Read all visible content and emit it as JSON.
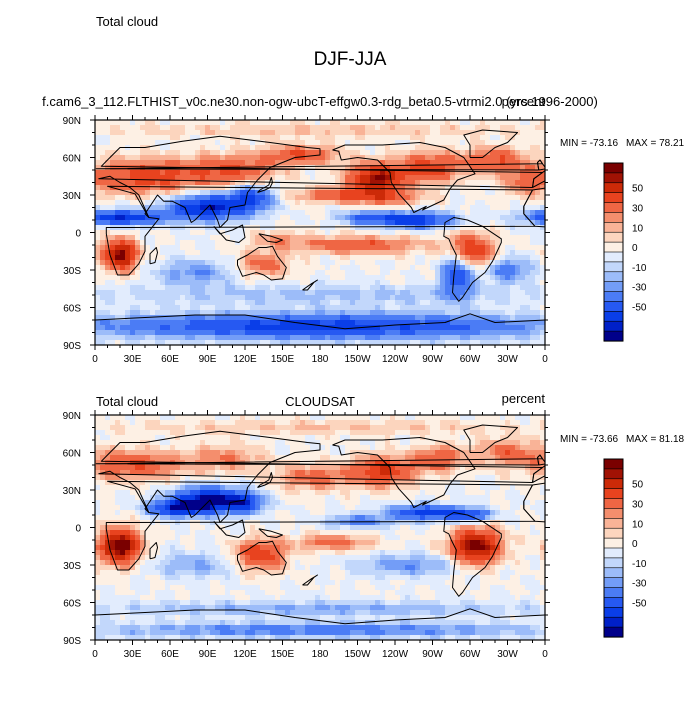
{
  "figure_title": "DJF-JJA",
  "chart_data": [
    {
      "type": "heatmap",
      "variable": "Total cloud",
      "title_left": "Total cloud",
      "title_center": "f.cam6_3_112.FLTHIST_v0c.ne30.non-ogw-ubcT-effgw0.3-rdg_beta0.5-vtrmi2.0 (yrs 1996-2000)",
      "title_right": "percent",
      "min_label": "MIN = -73.16",
      "max_label": "MAX =  78.21",
      "x_ticks": [
        "0",
        "30E",
        "60E",
        "90E",
        "120E",
        "150E",
        "180",
        "150W",
        "120W",
        "90W",
        "60W",
        "30W",
        "0"
      ],
      "y_ticks": [
        "90N",
        "60N",
        "30N",
        "0",
        "30S",
        "60S",
        "90S"
      ],
      "xlim": [
        0,
        360
      ],
      "ylim": [
        -90,
        90
      ],
      "blobs": [
        {
          "lon": 40,
          "lat": 45,
          "rx": 45,
          "ry": 14,
          "v": 35
        },
        {
          "lon": 110,
          "lat": 50,
          "rx": 35,
          "ry": 12,
          "v": 30
        },
        {
          "lon": 225,
          "lat": 43,
          "rx": 22,
          "ry": 12,
          "v": 55
        },
        {
          "lon": 268,
          "lat": 52,
          "rx": 25,
          "ry": 12,
          "v": 35
        },
        {
          "lon": 320,
          "lat": 58,
          "rx": 25,
          "ry": 10,
          "v": 30
        },
        {
          "lon": 165,
          "lat": 62,
          "rx": 30,
          "ry": 8,
          "v": 30
        },
        {
          "lon": 345,
          "lat": 40,
          "rx": 18,
          "ry": 10,
          "v": 20
        },
        {
          "lon": 190,
          "lat": 30,
          "rx": 30,
          "ry": 6,
          "v": 28
        },
        {
          "lon": 235,
          "lat": 28,
          "rx": 30,
          "ry": 6,
          "v": 22
        },
        {
          "lon": 20,
          "lat": -18,
          "rx": 14,
          "ry": 12,
          "v": 60
        },
        {
          "lon": 300,
          "lat": -15,
          "rx": 18,
          "ry": 14,
          "v": 45
        },
        {
          "lon": 135,
          "lat": -25,
          "rx": 20,
          "ry": 10,
          "v": 25
        },
        {
          "lon": 210,
          "lat": -10,
          "rx": 50,
          "ry": 7,
          "v": 30
        },
        {
          "lon": 145,
          "lat": -5,
          "rx": 20,
          "ry": 6,
          "v": 15
        },
        {
          "lon": 90,
          "lat": 20,
          "rx": 32,
          "ry": 10,
          "v": -55
        },
        {
          "lon": 20,
          "lat": 12,
          "rx": 35,
          "ry": 6,
          "v": -50
        },
        {
          "lon": 125,
          "lat": 28,
          "rx": 18,
          "ry": 10,
          "v": -35
        },
        {
          "lon": 255,
          "lat": 10,
          "rx": 32,
          "ry": 6,
          "v": -50
        },
        {
          "lon": 290,
          "lat": -32,
          "rx": 12,
          "ry": 18,
          "v": -45
        },
        {
          "lon": 215,
          "lat": 12,
          "rx": 20,
          "ry": 5,
          "v": -25
        },
        {
          "lon": 180,
          "lat": -75,
          "rx": 180,
          "ry": 10,
          "v": -45
        },
        {
          "lon": 180,
          "lat": -50,
          "rx": 180,
          "ry": 8,
          "v": -12
        },
        {
          "lon": 80,
          "lat": -32,
          "rx": 30,
          "ry": 10,
          "v": -20
        },
        {
          "lon": 330,
          "lat": -30,
          "rx": 20,
          "ry": 10,
          "v": -25
        },
        {
          "lon": 180,
          "lat": 82,
          "rx": 180,
          "ry": 6,
          "v": 10
        }
      ]
    },
    {
      "type": "heatmap",
      "variable": "Total cloud",
      "title_left": "Total cloud",
      "title_center": "CLOUDSAT",
      "title_right": "percent",
      "min_label": "MIN = -73.66",
      "max_label": "MAX =  81.18",
      "x_ticks": [
        "0",
        "30E",
        "60E",
        "90E",
        "120E",
        "150E",
        "180",
        "150W",
        "120W",
        "90W",
        "60W",
        "30W",
        "0"
      ],
      "y_ticks": [
        "90N",
        "60N",
        "30N",
        "0",
        "30S",
        "60S",
        "90S"
      ],
      "xlim": [
        0,
        360
      ],
      "ylim": [
        -90,
        90
      ],
      "blobs": [
        {
          "lon": 30,
          "lat": 50,
          "rx": 40,
          "ry": 12,
          "v": 30
        },
        {
          "lon": 105,
          "lat": 55,
          "rx": 30,
          "ry": 10,
          "v": 20
        },
        {
          "lon": 230,
          "lat": 45,
          "rx": 25,
          "ry": 12,
          "v": 40
        },
        {
          "lon": 275,
          "lat": 55,
          "rx": 20,
          "ry": 10,
          "v": 30
        },
        {
          "lon": 330,
          "lat": 60,
          "rx": 25,
          "ry": 10,
          "v": 25
        },
        {
          "lon": 175,
          "lat": 40,
          "rx": 30,
          "ry": 10,
          "v": 25
        },
        {
          "lon": 20,
          "lat": -15,
          "rx": 16,
          "ry": 14,
          "v": 65
        },
        {
          "lon": 305,
          "lat": -15,
          "rx": 20,
          "ry": 14,
          "v": 60
        },
        {
          "lon": 132,
          "lat": -22,
          "rx": 20,
          "ry": 12,
          "v": 40
        },
        {
          "lon": 190,
          "lat": -12,
          "rx": 30,
          "ry": 6,
          "v": 25
        },
        {
          "lon": 90,
          "lat": 22,
          "rx": 28,
          "ry": 10,
          "v": -60
        },
        {
          "lon": 65,
          "lat": 15,
          "rx": 22,
          "ry": 6,
          "v": -45
        },
        {
          "lon": 120,
          "lat": 20,
          "rx": 15,
          "ry": 8,
          "v": -35
        },
        {
          "lon": 265,
          "lat": 12,
          "rx": 30,
          "ry": 6,
          "v": -45
        },
        {
          "lon": 300,
          "lat": 10,
          "rx": 18,
          "ry": 5,
          "v": -35
        },
        {
          "lon": 210,
          "lat": 5,
          "rx": 25,
          "ry": 5,
          "v": -25
        },
        {
          "lon": 80,
          "lat": -30,
          "rx": 35,
          "ry": 10,
          "v": -15
        },
        {
          "lon": 250,
          "lat": -30,
          "rx": 40,
          "ry": 8,
          "v": -20
        },
        {
          "lon": 180,
          "lat": -65,
          "rx": 180,
          "ry": 6,
          "v": -15
        },
        {
          "lon": 180,
          "lat": -82,
          "rx": 180,
          "ry": 6,
          "v": -25
        },
        {
          "lon": 180,
          "lat": 80,
          "rx": 180,
          "ry": 6,
          "v": 10
        }
      ]
    }
  ],
  "colorbar": {
    "colors": [
      "#00008a",
      "#0020c8",
      "#0a3ee8",
      "#2659f2",
      "#4b7cf5",
      "#739df7",
      "#9cbcf9",
      "#c2d7fb",
      "#e2ecfd",
      "#fdf0e4",
      "#fcd5be",
      "#f9b397",
      "#f48e6d",
      "#ef6644",
      "#e8431f",
      "#cc2a08",
      "#a11204",
      "#7a0000"
    ],
    "bounds": [
      -60,
      -55,
      -50,
      -40,
      -30,
      -20,
      -15,
      -10,
      -5,
      0,
      5,
      10,
      15,
      20,
      30,
      40,
      50,
      55
    ],
    "labels": [
      "50",
      "30",
      "10",
      "0",
      "-10",
      "-30",
      "-50"
    ]
  }
}
